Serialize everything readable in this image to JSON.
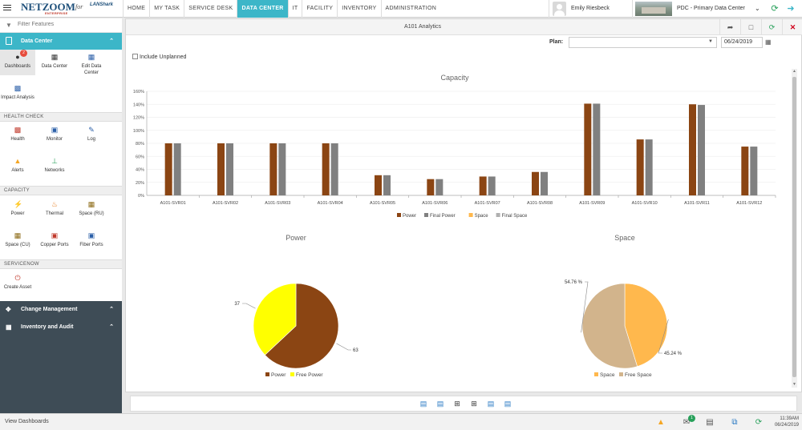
{
  "header": {
    "logo": "NETZOOM",
    "logo_sub": "ENTERPRISE",
    "logo_for": "for",
    "logo_partner": "LANShark",
    "nav": [
      "HOME",
      "MY TASK",
      "SERVICE DESK",
      "DATA CENTER",
      "IT",
      "FACILITY",
      "INVENTORY",
      "ADMINISTRATION"
    ],
    "active_nav": "DATA CENTER",
    "user_name": "Emily Riesbeck",
    "data_center": "PDC - Primary Data Center"
  },
  "sidebar": {
    "filter_placeholder": "Filter Features",
    "section": "Data Center",
    "tiles_top": [
      {
        "label": "Dashboards",
        "icon": "dashboards-icon",
        "badge": "2"
      },
      {
        "label": "Data Center",
        "icon": "building-icon"
      },
      {
        "label": "Edit Data Center",
        "icon": "edit-building-icon"
      },
      {
        "label": "Impact Analysis",
        "icon": "impact-icon"
      }
    ],
    "groups": [
      {
        "title": "HEALTH CHECK",
        "items": [
          {
            "label": "Health",
            "icon": "health-icon"
          },
          {
            "label": "Monitor",
            "icon": "monitor-icon"
          },
          {
            "label": "Log",
            "icon": "log-icon"
          },
          {
            "label": "Alerts",
            "icon": "bell-icon"
          },
          {
            "label": "Networks",
            "icon": "network-icon"
          }
        ]
      },
      {
        "title": "CAPACITY",
        "items": [
          {
            "label": "Power",
            "icon": "power-icon"
          },
          {
            "label": "Thermal",
            "icon": "flame-icon"
          },
          {
            "label": "Space (RU)",
            "icon": "space-ru-icon"
          },
          {
            "label": "Space (CU)",
            "icon": "space-cu-icon"
          },
          {
            "label": "Copper Ports",
            "icon": "copper-ports-icon"
          },
          {
            "label": "Fiber Ports",
            "icon": "fiber-ports-icon"
          }
        ]
      },
      {
        "title": "SERVICENOW",
        "items": [
          {
            "label": "Create Asset",
            "icon": "power-button-icon"
          }
        ]
      }
    ],
    "dark_items": [
      "Change Management",
      "Inventory and Audit"
    ]
  },
  "main": {
    "title": "A101 Analytics",
    "plan_label": "Plan:",
    "plan_value": "",
    "date": "06/24/2019",
    "include_unplanned": "Include Unplanned"
  },
  "chart_data": [
    {
      "type": "bar",
      "title": "Capacity",
      "categories": [
        "A101-SVR01",
        "A101-SVR02",
        "A101-SVR03",
        "A101-SVR04",
        "A101-SVR05",
        "A101-SVR06",
        "A101-SVR07",
        "A101-SVR08",
        "A101-SVR09",
        "A101-SVR10",
        "A101-SVR11",
        "A101-SVR12"
      ],
      "series": [
        {
          "name": "Power",
          "color": "#8b4513",
          "values": [
            80,
            80,
            80,
            80,
            31,
            25,
            29,
            36,
            141,
            86,
            140,
            75
          ]
        },
        {
          "name": "Final Power",
          "color": "#808080",
          "values": [
            80,
            80,
            80,
            80,
            31,
            25,
            29,
            36,
            141,
            86,
            139,
            75
          ]
        },
        {
          "name": "Space",
          "color": "#ffb84d",
          "values": [
            0,
            0,
            0,
            0,
            0,
            0,
            0,
            0,
            0,
            0,
            0,
            0
          ]
        },
        {
          "name": "Final Space",
          "color": "#b0b0b0",
          "values": [
            0,
            0,
            0,
            0,
            0,
            0,
            0,
            0,
            0,
            0,
            0,
            0
          ]
        }
      ],
      "y_ticks": [
        "0%",
        "20%",
        "40%",
        "60%",
        "80%",
        "100%",
        "120%",
        "140%",
        "160%"
      ],
      "ylim": [
        0,
        160
      ],
      "legend": "bottom"
    },
    {
      "type": "pie",
      "title": "Power",
      "slices": [
        {
          "label": "Power",
          "value": 63,
          "display": "63",
          "color": "#8b4513"
        },
        {
          "label": "Free Power",
          "value": 37,
          "display": "37",
          "color": "#ffff00"
        }
      ],
      "legend": "bottom"
    },
    {
      "type": "pie",
      "title": "Space",
      "slices": [
        {
          "label": "Space",
          "value": 45.24,
          "display": "45.24 %",
          "color": "#ffb84d"
        },
        {
          "label": "Free Space",
          "value": 54.76,
          "display": "54.76 %",
          "color": "#d2b48c"
        }
      ],
      "legend": "bottom"
    }
  ],
  "status": {
    "text": "View Dashboards",
    "notification_count": "1",
    "time": "11:39AM",
    "date": "06/24/2019"
  }
}
